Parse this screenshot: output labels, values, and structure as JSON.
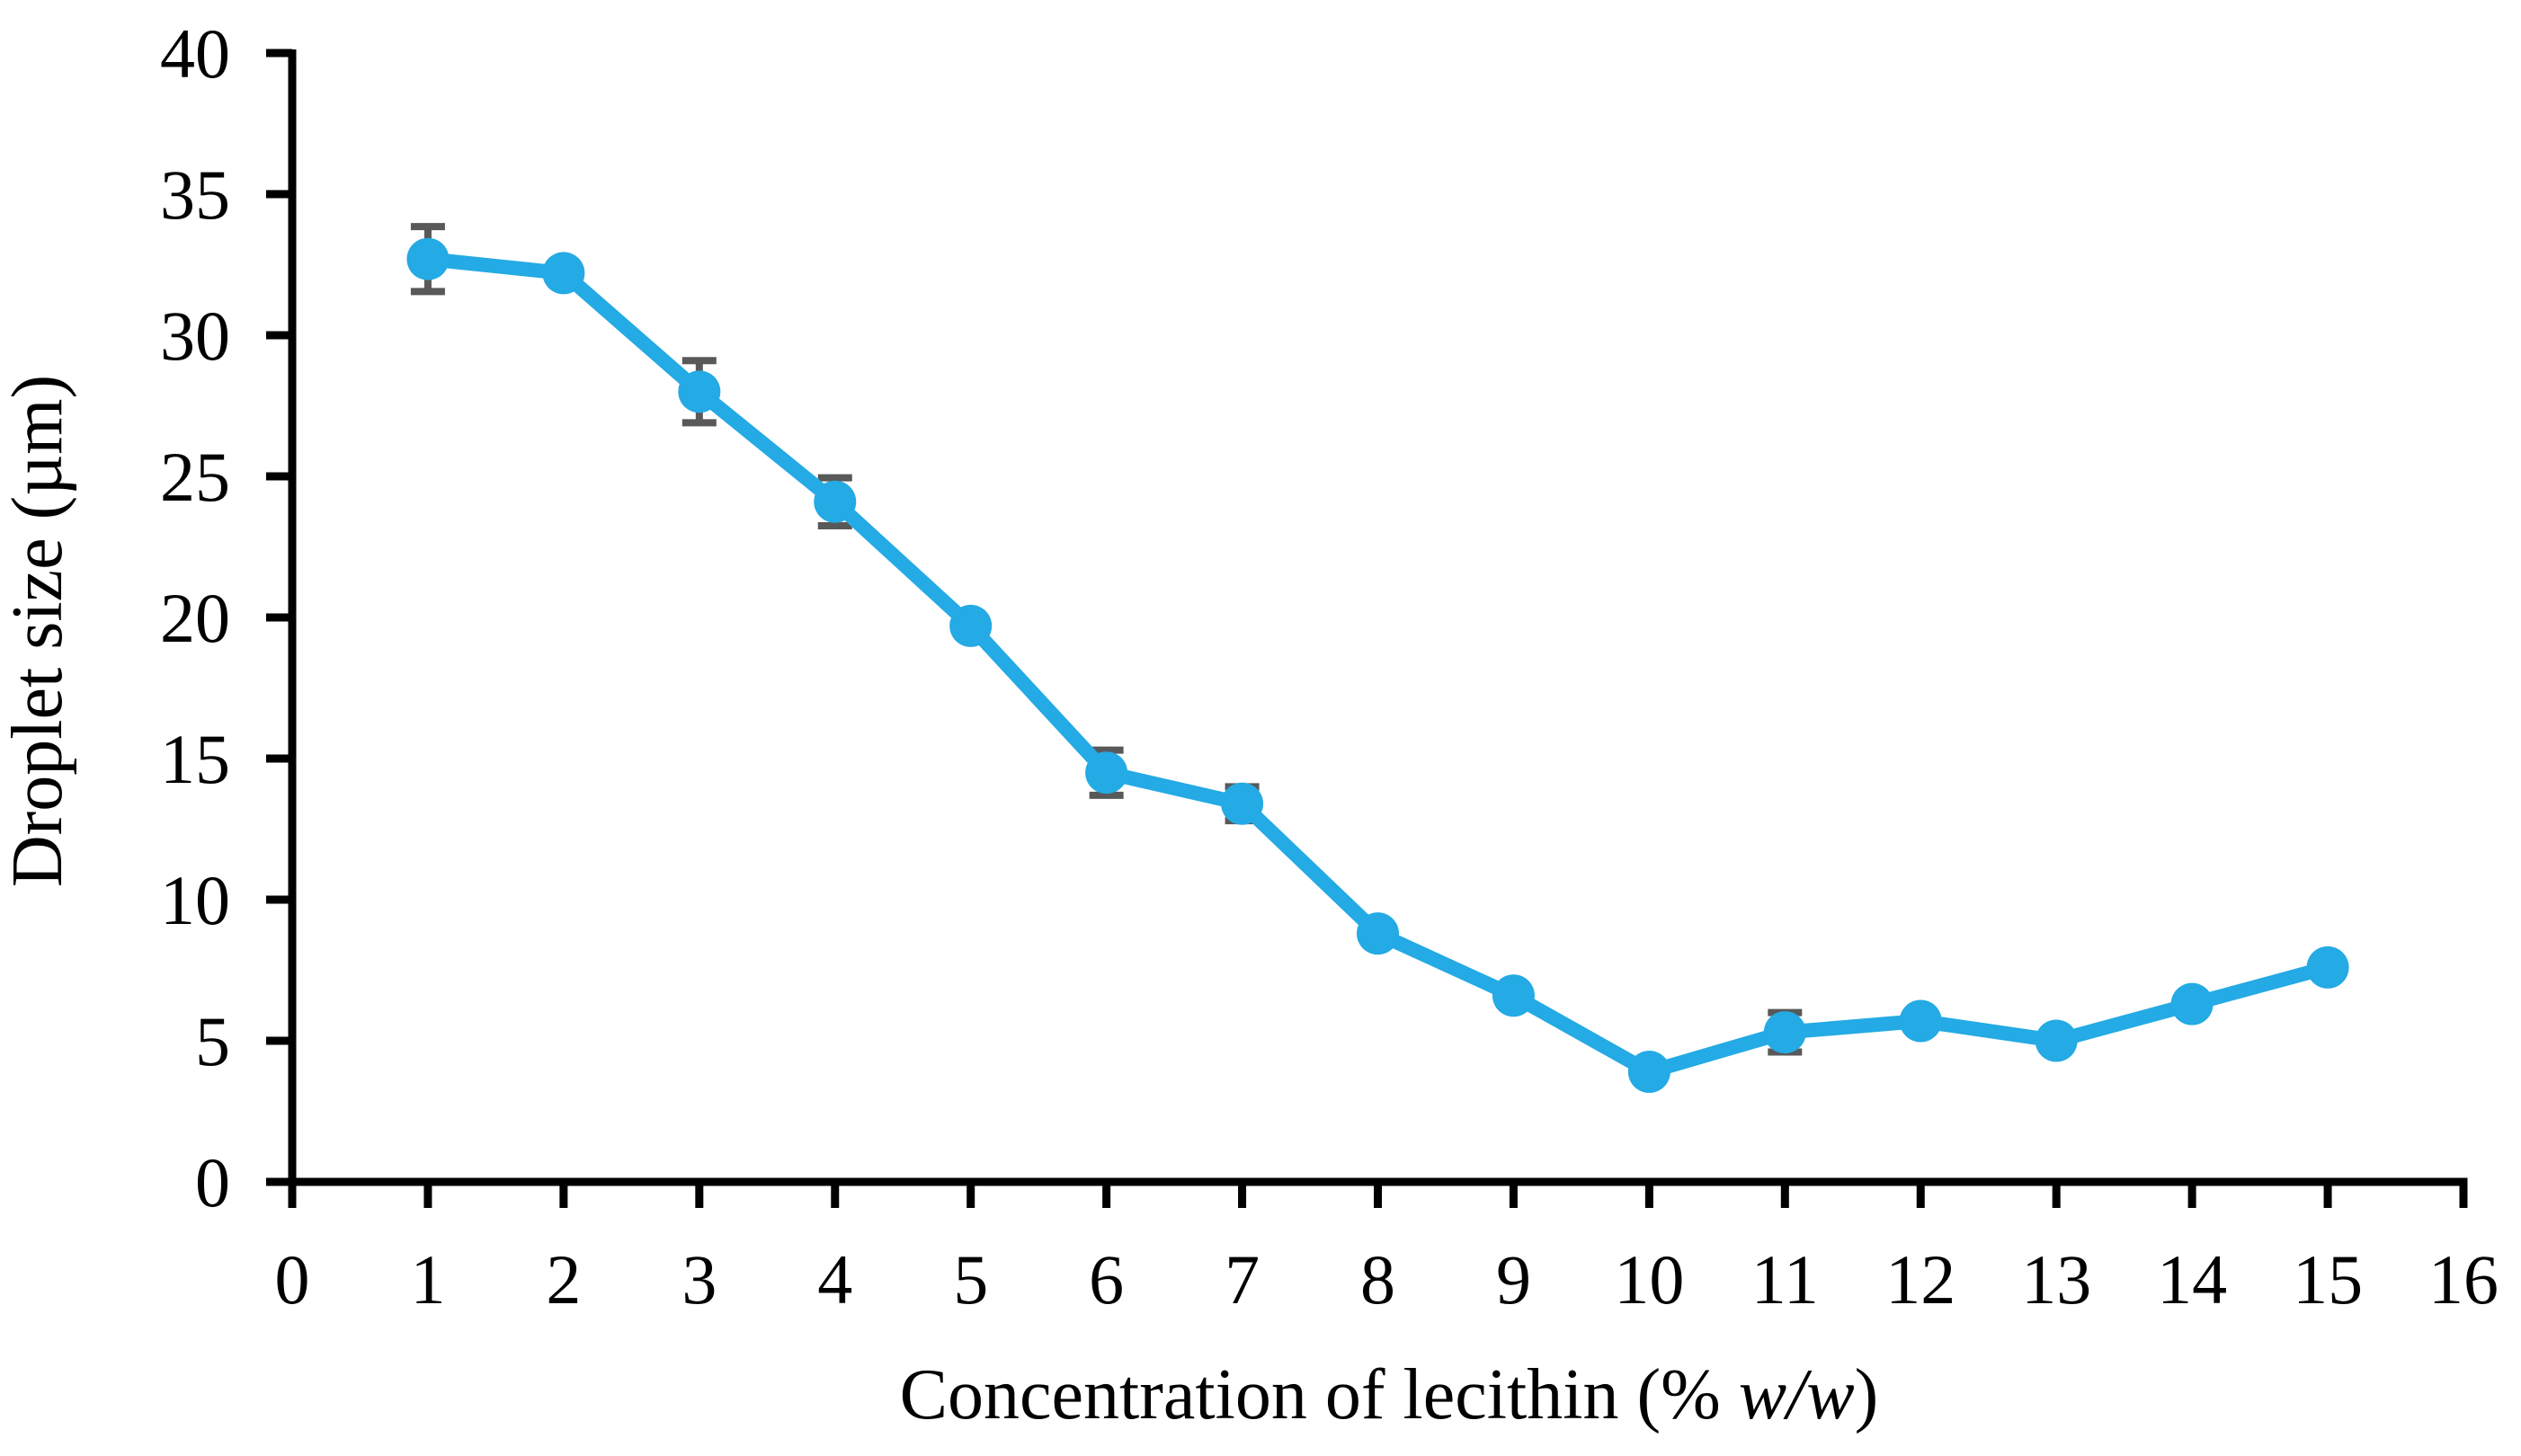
{
  "figure": {
    "background": "#ffffff",
    "axis_color": "#000000",
    "error_bar_color": "#595959"
  },
  "chart_data": {
    "type": "line",
    "title": "",
    "xlabel": "Concentration of lecithin (% w/w)",
    "xlabel_parts": {
      "prefix": "Concentration of lecithin (% ",
      "italic": "w/w",
      "suffix": ")"
    },
    "ylabel": "Droplet size (µm)",
    "xlim": [
      0,
      16
    ],
    "ylim": [
      0,
      40
    ],
    "x_ticks": [
      0,
      1,
      2,
      3,
      4,
      5,
      6,
      7,
      8,
      9,
      10,
      11,
      12,
      13,
      14,
      15,
      16
    ],
    "y_ticks": [
      0,
      5,
      10,
      15,
      20,
      25,
      30,
      35,
      40
    ],
    "grid": false,
    "legend": null,
    "series": [
      {
        "name": "Droplet size",
        "color": "#24AAE4",
        "marker": "circle",
        "x": [
          1,
          2,
          3,
          4,
          5,
          6,
          7,
          8,
          9,
          10,
          11,
          12,
          13,
          14,
          15
        ],
        "y": [
          32.7,
          32.2,
          28.0,
          24.1,
          19.7,
          14.5,
          13.4,
          8.8,
          6.6,
          3.9,
          5.3,
          5.7,
          5.0,
          6.3,
          7.6
        ],
        "yerr": [
          1.15,
          0,
          1.1,
          0.85,
          0,
          0.8,
          0.6,
          0,
          0,
          0,
          0.7,
          0,
          0,
          0,
          0
        ]
      }
    ]
  }
}
